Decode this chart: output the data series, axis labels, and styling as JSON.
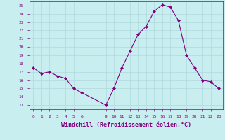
{
  "x": [
    0,
    1,
    2,
    3,
    4,
    5,
    6,
    9,
    10,
    11,
    12,
    13,
    14,
    15,
    16,
    17,
    18,
    19,
    20,
    21,
    22,
    23
  ],
  "y": [
    17.5,
    16.8,
    17.0,
    16.5,
    16.2,
    15.0,
    14.5,
    13.0,
    15.0,
    17.5,
    19.5,
    21.5,
    22.5,
    24.3,
    25.1,
    24.8,
    23.2,
    19.0,
    17.5,
    16.0,
    15.8,
    15.0
  ],
  "line_color": "#800080",
  "marker": "D",
  "marker_size": 2.0,
  "bg_color": "#c8eef0",
  "grid_color": "#b0d8dc",
  "xlabel": "Windchill (Refroidissement éolien,°C)",
  "xlabel_fontsize": 6.0,
  "xticks": [
    0,
    1,
    2,
    3,
    4,
    5,
    6,
    9,
    10,
    11,
    12,
    13,
    14,
    15,
    16,
    17,
    18,
    19,
    20,
    21,
    22,
    23
  ],
  "yticks": [
    13,
    14,
    15,
    16,
    17,
    18,
    19,
    20,
    21,
    22,
    23,
    24,
    25
  ],
  "ylim": [
    12.5,
    25.5
  ],
  "xlim": [
    -0.5,
    23.5
  ]
}
